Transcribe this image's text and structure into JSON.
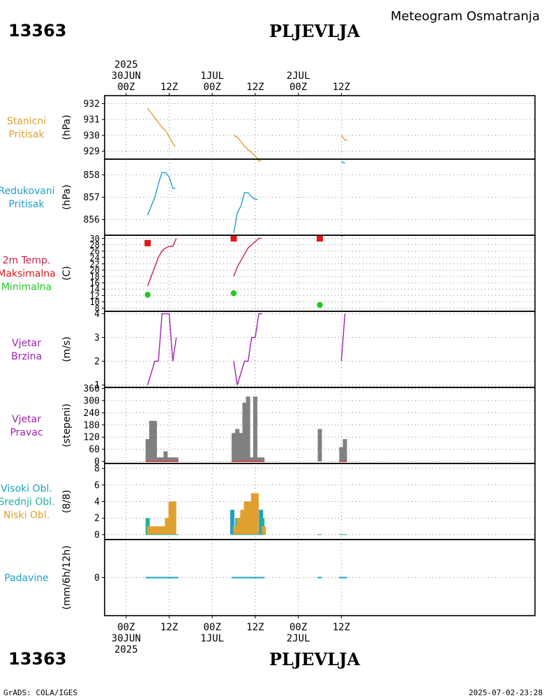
{
  "header": {
    "station_id": "13363",
    "station_name": "PLJEVLJA",
    "title": "Meteogram Osmatranja"
  },
  "footer": {
    "station_id": "13363",
    "station_name": "PLJEVLJA",
    "credit": "GrADS: COLA/IGES",
    "timestamp": "2025-07-02-23:28"
  },
  "time_axis": {
    "range_hours": [
      -6,
      114
    ],
    "ticks": [
      {
        "h": 0,
        "lines": [
          "2025",
          "30JUN",
          "00Z"
        ]
      },
      {
        "h": 12,
        "lines": [
          "12Z"
        ]
      },
      {
        "h": 24,
        "lines": [
          "1JUL",
          "00Z"
        ]
      },
      {
        "h": 36,
        "lines": [
          "12Z"
        ]
      },
      {
        "h": 48,
        "lines": [
          "2JUL",
          "00Z"
        ]
      },
      {
        "h": 60,
        "lines": [
          "12Z"
        ]
      }
    ],
    "bottom_ticks": [
      {
        "h": 0,
        "lines": [
          "00Z",
          "30JUN",
          "2025"
        ]
      },
      {
        "h": 12,
        "lines": [
          "12Z"
        ]
      },
      {
        "h": 24,
        "lines": [
          "00Z",
          "1JUL"
        ]
      },
      {
        "h": 36,
        "lines": [
          "12Z"
        ]
      },
      {
        "h": 48,
        "lines": [
          "00Z",
          "2JUL"
        ]
      },
      {
        "h": 60,
        "lines": [
          "12Z"
        ]
      }
    ]
  },
  "chart_data": [
    {
      "type": "line",
      "title": "Stanicni Pritisak",
      "label_lines": [
        "Stanicni",
        "Pritisak"
      ],
      "label_color": "#e0a030",
      "ylabel": "(hPa)",
      "ylim": [
        928.5,
        932.5
      ],
      "yticks": [
        929,
        930,
        931,
        932
      ],
      "series": [
        {
          "name": "Stanicni Pritisak",
          "color": "#e0a030",
          "segments": [
            [
              [
                6,
                931.7
              ],
              [
                7,
                931.4
              ],
              [
                8,
                931.1
              ],
              [
                9,
                930.8
              ],
              [
                10,
                930.5
              ],
              [
                11,
                930.3
              ],
              [
                12,
                929.9
              ],
              [
                13,
                929.5
              ],
              [
                13.7,
                929.3
              ]
            ],
            [
              [
                30,
                930.0
              ],
              [
                31,
                929.9
              ],
              [
                32,
                929.6
              ],
              [
                33,
                929.3
              ],
              [
                34,
                929.1
              ],
              [
                35,
                928.9
              ],
              [
                36,
                928.7
              ],
              [
                37,
                928.4
              ],
              [
                37.7,
                928.4
              ]
            ],
            [
              [
                60,
                930.0
              ],
              [
                61,
                929.7
              ],
              [
                61.7,
                929.7
              ]
            ]
          ]
        }
      ]
    },
    {
      "type": "line",
      "title": "Redukovani Pritisak",
      "label_lines": [
        "Redukovani",
        "Pritisak"
      ],
      "label_color": "#1aa0c8",
      "ylabel": "(hPa)",
      "ylim": [
        855.3,
        858.7
      ],
      "yticks": [
        856,
        857,
        858
      ],
      "series": [
        {
          "name": "Redukovani Pritisak",
          "color": "#1aa0c8",
          "segments": [
            [
              [
                6,
                856.2
              ],
              [
                7,
                856.6
              ],
              [
                8,
                857.0
              ],
              [
                9,
                857.6
              ],
              [
                10,
                858.1
              ],
              [
                11,
                858.1
              ],
              [
                12,
                857.9
              ],
              [
                13,
                857.4
              ],
              [
                13.7,
                857.4
              ]
            ],
            [
              [
                30,
                855.4
              ],
              [
                31,
                856.3
              ],
              [
                32,
                856.6
              ],
              [
                33,
                857.2
              ],
              [
                34,
                857.2
              ],
              [
                35,
                857.0
              ],
              [
                36,
                856.9
              ],
              [
                36.7,
                856.9
              ]
            ],
            [
              [
                60,
                858.6
              ],
              [
                61,
                858.5
              ]
            ]
          ]
        }
      ]
    },
    {
      "type": "line+scatter",
      "title": "2m Temp. Maksimalna Minimalna",
      "label_lines": [
        "2m Temp.",
        "Maksimalna",
        "Minimalna"
      ],
      "label_colors": [
        "#c8204a",
        "#e01818",
        "#20c820"
      ],
      "ylabel": "(C)",
      "ylim": [
        7,
        31
      ],
      "yticks": [
        8,
        10,
        12,
        14,
        16,
        18,
        20,
        22,
        24,
        26,
        28,
        30
      ],
      "series": [
        {
          "name": "2m Temp.",
          "color": "#c8204a",
          "segments": [
            [
              [
                6,
                15
              ],
              [
                7,
                18
              ],
              [
                8,
                21
              ],
              [
                9,
                24
              ],
              [
                10,
                26
              ],
              [
                11,
                27
              ],
              [
                12,
                27.5
              ],
              [
                13,
                27.5
              ],
              [
                14,
                30
              ]
            ],
            [
              [
                30,
                18
              ],
              [
                31,
                21
              ],
              [
                32,
                23
              ],
              [
                33,
                25
              ],
              [
                34,
                27
              ],
              [
                35,
                28
              ],
              [
                36,
                29
              ],
              [
                37,
                30
              ],
              [
                37.7,
                30
              ]
            ],
            [
              [
                60,
                30.6
              ],
              [
                61,
                31.2
              ]
            ]
          ]
        },
        {
          "name": "Maksimalna",
          "color": "#e01818",
          "marker": "square",
          "points": [
            [
              6,
              28.5
            ],
            [
              30,
              30
            ],
            [
              54,
              30
            ]
          ]
        },
        {
          "name": "Minimalna",
          "color": "#20c820",
          "marker": "circle",
          "points": [
            [
              6,
              12.2
            ],
            [
              30,
              12.7
            ],
            [
              54,
              9
            ]
          ]
        }
      ]
    },
    {
      "type": "line",
      "title": "Vjetar Brzina",
      "label_lines": [
        "Vjetar",
        "Brzina"
      ],
      "label_color": "#a020b0",
      "ylabel": "(m/s)",
      "ylim": [
        0.9,
        4.1
      ],
      "yticks": [
        1,
        2,
        3,
        4
      ],
      "series": [
        {
          "name": "Vjetar Brzina",
          "color": "#a020b0",
          "segments": [
            [
              [
                6,
                1
              ],
              [
                7,
                1.5
              ],
              [
                8,
                2
              ],
              [
                9,
                2
              ],
              [
                10,
                4
              ],
              [
                11,
                4
              ],
              [
                12,
                4
              ],
              [
                13,
                2
              ],
              [
                14,
                3
              ]
            ],
            [
              [
                30,
                2
              ],
              [
                31,
                1
              ],
              [
                32,
                1.5
              ],
              [
                33,
                2
              ],
              [
                34,
                2
              ],
              [
                35,
                3
              ],
              [
                36,
                3
              ],
              [
                37,
                4
              ],
              [
                38,
                4
              ]
            ],
            [
              [
                60,
                2
              ],
              [
                61,
                4
              ]
            ]
          ]
        }
      ]
    },
    {
      "type": "bar",
      "title": "Vjetar Pravac",
      "label_lines": [
        "Vjetar",
        "Pravac"
      ],
      "label_color": "#a020b0",
      "ylabel": "(stepeni)",
      "ylim": [
        -10,
        365
      ],
      "yticks": [
        0,
        60,
        120,
        180,
        240,
        300,
        360
      ],
      "yticklabels": [
        "0",
        "60",
        "120",
        "180",
        "240",
        "300",
        "360"
      ],
      "series": [
        {
          "name": "Vjetar Pravac",
          "color": "#808080",
          "x": [
            6,
            7,
            8,
            9,
            10,
            11,
            12,
            13,
            14,
            30,
            31,
            32,
            33,
            34,
            35,
            36,
            37,
            38,
            54,
            60,
            61
          ],
          "values": [
            110,
            200,
            200,
            20,
            20,
            50,
            20,
            20,
            20,
            140,
            160,
            140,
            290,
            320,
            20,
            320,
            20,
            20,
            160,
            70,
            110
          ]
        }
      ]
    },
    {
      "type": "bar",
      "title": "Visoki Obl. Srednji Obl. Niski Obl.",
      "label_lines": [
        "Visoki Obl.",
        "Srednji Obl.",
        "Niski Obl."
      ],
      "label_colors": [
        "#1aa0c8",
        "#20b0a0",
        "#e0a030"
      ],
      "ylabel": "(8/8)",
      "ylim": [
        -0.6,
        8.6
      ],
      "yticks": [
        0,
        2,
        4,
        6,
        8
      ],
      "series": [
        {
          "name": "Visoki Obl.",
          "color": "#1aa0c8",
          "x": [
            30,
            32,
            34,
            38
          ],
          "values": [
            3,
            2,
            1,
            3
          ]
        },
        {
          "name": "Srednji Obl.",
          "color": "#20b0a0",
          "x": [
            6,
            31,
            33,
            38
          ],
          "values": [
            2,
            2,
            2,
            2
          ]
        },
        {
          "name": "Niski Obl.",
          "color": "#e0a030",
          "x": [
            6,
            7,
            8,
            9,
            10,
            11,
            12,
            13,
            30,
            31,
            32,
            33,
            34,
            35,
            36,
            37,
            38
          ],
          "values": [
            1,
            1,
            1,
            1,
            1,
            2,
            4,
            4,
            1,
            2,
            3,
            4,
            4,
            5,
            5,
            0,
            1
          ]
        }
      ]
    },
    {
      "type": "bar",
      "title": "Padavine",
      "label_lines": [
        "Padavine"
      ],
      "label_color": "#1aa0c8",
      "ylabel": "(mm/6h/12h)",
      "ylim": [
        -5,
        5
      ],
      "yticks": [
        0
      ],
      "series": [
        {
          "name": "Padavine",
          "color": "#1aa0c8",
          "values": [
            0
          ]
        }
      ]
    }
  ]
}
